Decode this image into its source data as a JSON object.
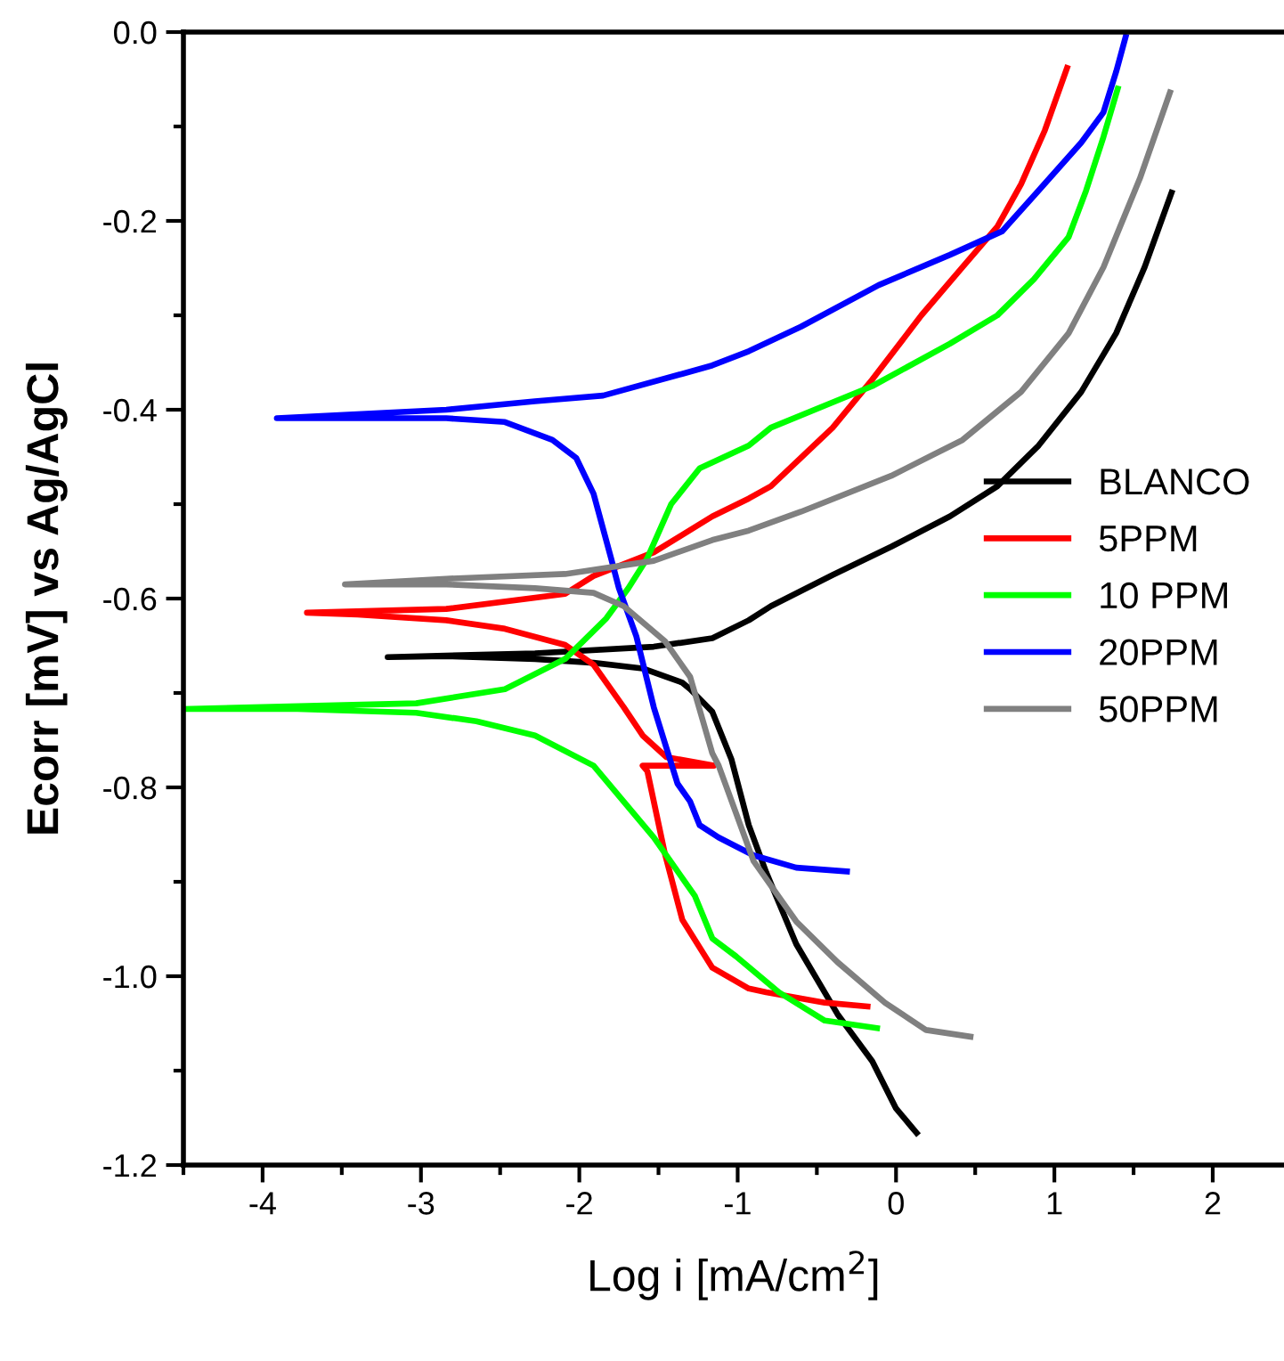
{
  "chart_data": {
    "type": "line",
    "xlabel": "Log i [mA/cm$^{2}$]",
    "ylabel": "Ecorr [mV] vs Ag/AgCl",
    "xlim": [
      -4.5,
      2.45
    ],
    "xticks": [
      -4,
      -3,
      -2,
      -1,
      0,
      1,
      2
    ],
    "ylim": [
      -1.2,
      0.0
    ],
    "yticks": [
      {
        "value": -1.2,
        "label": "-1.2"
      },
      {
        "value": -1.0,
        "label": "-1.0"
      },
      {
        "value": -0.8,
        "label": "-0.8"
      },
      {
        "value": -0.6,
        "label": "-0.6"
      },
      {
        "value": -0.4,
        "label": "-0.4"
      },
      {
        "value": -0.2,
        "label": "-0.2"
      },
      {
        "value": 0.0,
        "label": "0.0"
      }
    ],
    "grid": false,
    "legend": "right",
    "marker": "none",
    "line_style": "solid",
    "series": [
      {
        "name": "BLANCO",
        "color": "#000000",
        "x": [
          0.13,
          0.0,
          -0.15,
          -0.37,
          -0.63,
          -0.82,
          -0.93,
          -1.04,
          -1.16,
          -1.3,
          -1.35,
          -1.6,
          -1.91,
          -2.28,
          -2.84,
          -3.21,
          -2.28,
          -1.53,
          -1.16,
          -0.93,
          -0.79,
          -0.4,
          -0.03,
          0.34,
          0.64,
          0.9,
          1.17,
          1.39,
          1.57,
          1.74
        ],
        "values": [
          -1.166,
          -1.14,
          -1.09,
          -1.04,
          -0.966,
          -0.89,
          -0.84,
          -0.77,
          -0.72,
          -0.696,
          -0.689,
          -0.674,
          -0.668,
          -0.664,
          -0.661,
          -0.662,
          -0.658,
          -0.651,
          -0.642,
          -0.623,
          -0.608,
          -0.575,
          -0.545,
          -0.513,
          -0.481,
          -0.438,
          -0.381,
          -0.319,
          -0.249,
          -0.17
        ]
      },
      {
        "name": "5PPM",
        "color": "#ff0000",
        "x": [
          -0.18,
          -0.45,
          -0.82,
          -0.93,
          -1.16,
          -1.35,
          -1.46,
          -1.57,
          -1.6,
          -1.15,
          -1.45,
          -1.6,
          -1.72,
          -1.91,
          -2.09,
          -2.47,
          -2.84,
          -3.4,
          -3.72,
          -2.84,
          -2.09,
          -1.91,
          -1.53,
          -1.16,
          -0.93,
          -0.79,
          -0.4,
          -0.15,
          0.16,
          0.42,
          0.64,
          0.79,
          0.94,
          1.08
        ],
        "values": [
          -1.032,
          -1.028,
          -1.017,
          -1.013,
          -0.991,
          -0.94,
          -0.87,
          -0.783,
          -0.777,
          -0.777,
          -0.768,
          -0.745,
          -0.715,
          -0.67,
          -0.649,
          -0.632,
          -0.623,
          -0.617,
          -0.615,
          -0.611,
          -0.595,
          -0.576,
          -0.551,
          -0.513,
          -0.494,
          -0.481,
          -0.419,
          -0.368,
          -0.3,
          -0.249,
          -0.206,
          -0.161,
          -0.104,
          -0.038
        ]
      },
      {
        "name": "10 PPM",
        "color": "#00ff00",
        "x": [
          -0.12,
          -0.45,
          -0.74,
          -1.01,
          -1.16,
          -1.27,
          -1.53,
          -1.72,
          -1.91,
          -2.28,
          -2.65,
          -3.03,
          -3.78,
          -4.5,
          -3.03,
          -2.47,
          -2.09,
          -1.83,
          -1.69,
          -1.57,
          -1.42,
          -1.24,
          -0.93,
          -0.79,
          -0.15,
          0.34,
          0.64,
          0.87,
          1.09,
          1.2,
          1.31,
          1.4
        ],
        "values": [
          -1.055,
          -1.047,
          -1.017,
          -0.979,
          -0.96,
          -0.915,
          -0.853,
          -0.815,
          -0.777,
          -0.745,
          -0.73,
          -0.721,
          -0.717,
          -0.717,
          -0.711,
          -0.696,
          -0.664,
          -0.621,
          -0.589,
          -0.557,
          -0.5,
          -0.462,
          -0.438,
          -0.419,
          -0.375,
          -0.33,
          -0.3,
          -0.262,
          -0.217,
          -0.168,
          -0.111,
          -0.06
        ]
      },
      {
        "name": "20PPM",
        "color": "#0000ff",
        "x": [
          -0.31,
          -0.63,
          -0.9,
          -1.12,
          -1.24,
          -1.3,
          -1.38,
          -1.53,
          -1.64,
          -1.75,
          -1.8,
          -1.91,
          -2.02,
          -2.17,
          -2.47,
          -2.84,
          -3.91,
          -2.84,
          -2.28,
          -1.85,
          -1.35,
          -1.16,
          -0.93,
          -0.6,
          -0.11,
          0.34,
          0.67,
          0.9,
          1.17,
          1.31,
          1.39,
          1.45
        ],
        "values": [
          -0.889,
          -0.885,
          -0.872,
          -0.853,
          -0.84,
          -0.815,
          -0.796,
          -0.715,
          -0.64,
          -0.589,
          -0.557,
          -0.489,
          -0.451,
          -0.432,
          -0.413,
          -0.409,
          -0.409,
          -0.4,
          -0.391,
          -0.385,
          -0.362,
          -0.353,
          -0.338,
          -0.312,
          -0.268,
          -0.236,
          -0.211,
          -0.168,
          -0.117,
          -0.085,
          -0.042,
          -0.005
        ]
      },
      {
        "name": "50PPM",
        "color": "#808080",
        "x": [
          0.47,
          0.19,
          -0.07,
          -0.37,
          -0.63,
          -0.9,
          -1.12,
          -1.16,
          -1.3,
          -1.46,
          -1.72,
          -1.91,
          -2.28,
          -2.84,
          -3.48,
          -2.84,
          -2.09,
          -1.53,
          -1.16,
          -0.93,
          -0.6,
          -0.03,
          0.42,
          0.79,
          1.09,
          1.31,
          1.54,
          1.73
        ],
        "values": [
          -1.064,
          -1.057,
          -1.028,
          -0.985,
          -0.942,
          -0.878,
          -0.777,
          -0.764,
          -0.683,
          -0.645,
          -0.608,
          -0.594,
          -0.589,
          -0.585,
          -0.585,
          -0.579,
          -0.574,
          -0.56,
          -0.538,
          -0.528,
          -0.508,
          -0.47,
          -0.432,
          -0.381,
          -0.319,
          -0.249,
          -0.155,
          -0.064
        ]
      }
    ]
  }
}
